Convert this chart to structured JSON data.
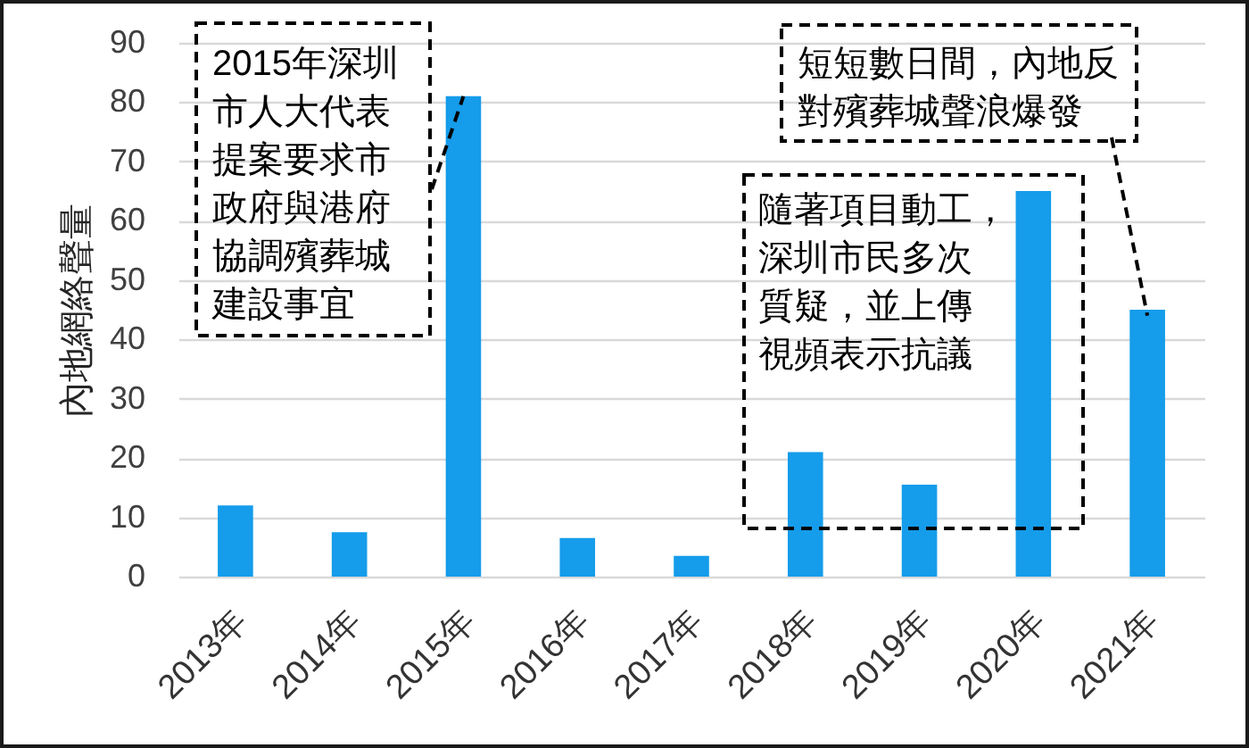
{
  "chart_data": {
    "type": "bar",
    "ylabel": "內地網絡聲量",
    "categories": [
      "2013年",
      "2014年",
      "2015年",
      "2016年",
      "2017年",
      "2018年",
      "2019年",
      "2020年",
      "2021年"
    ],
    "values": [
      12,
      7.5,
      81,
      6.5,
      3.5,
      21,
      15.5,
      65,
      45
    ],
    "color": "#159cea",
    "ylim": [
      0,
      90
    ],
    "yticks": [
      0,
      10,
      20,
      30,
      40,
      50,
      60,
      70,
      80,
      90
    ],
    "grid": "y",
    "annotations": [
      {
        "text": "2015年深圳市人大代表提案要求市政府與港府協調殯葬城建設事宜",
        "x": "2015年",
        "y": 81
      },
      {
        "text": "短短數日間，內地反對殯葬城聲浪爆發",
        "x": "2021年",
        "y": 44
      },
      "隨著項目動工，深圳市民多次質疑，並上傳視頻表示抗議"
    ]
  }
}
